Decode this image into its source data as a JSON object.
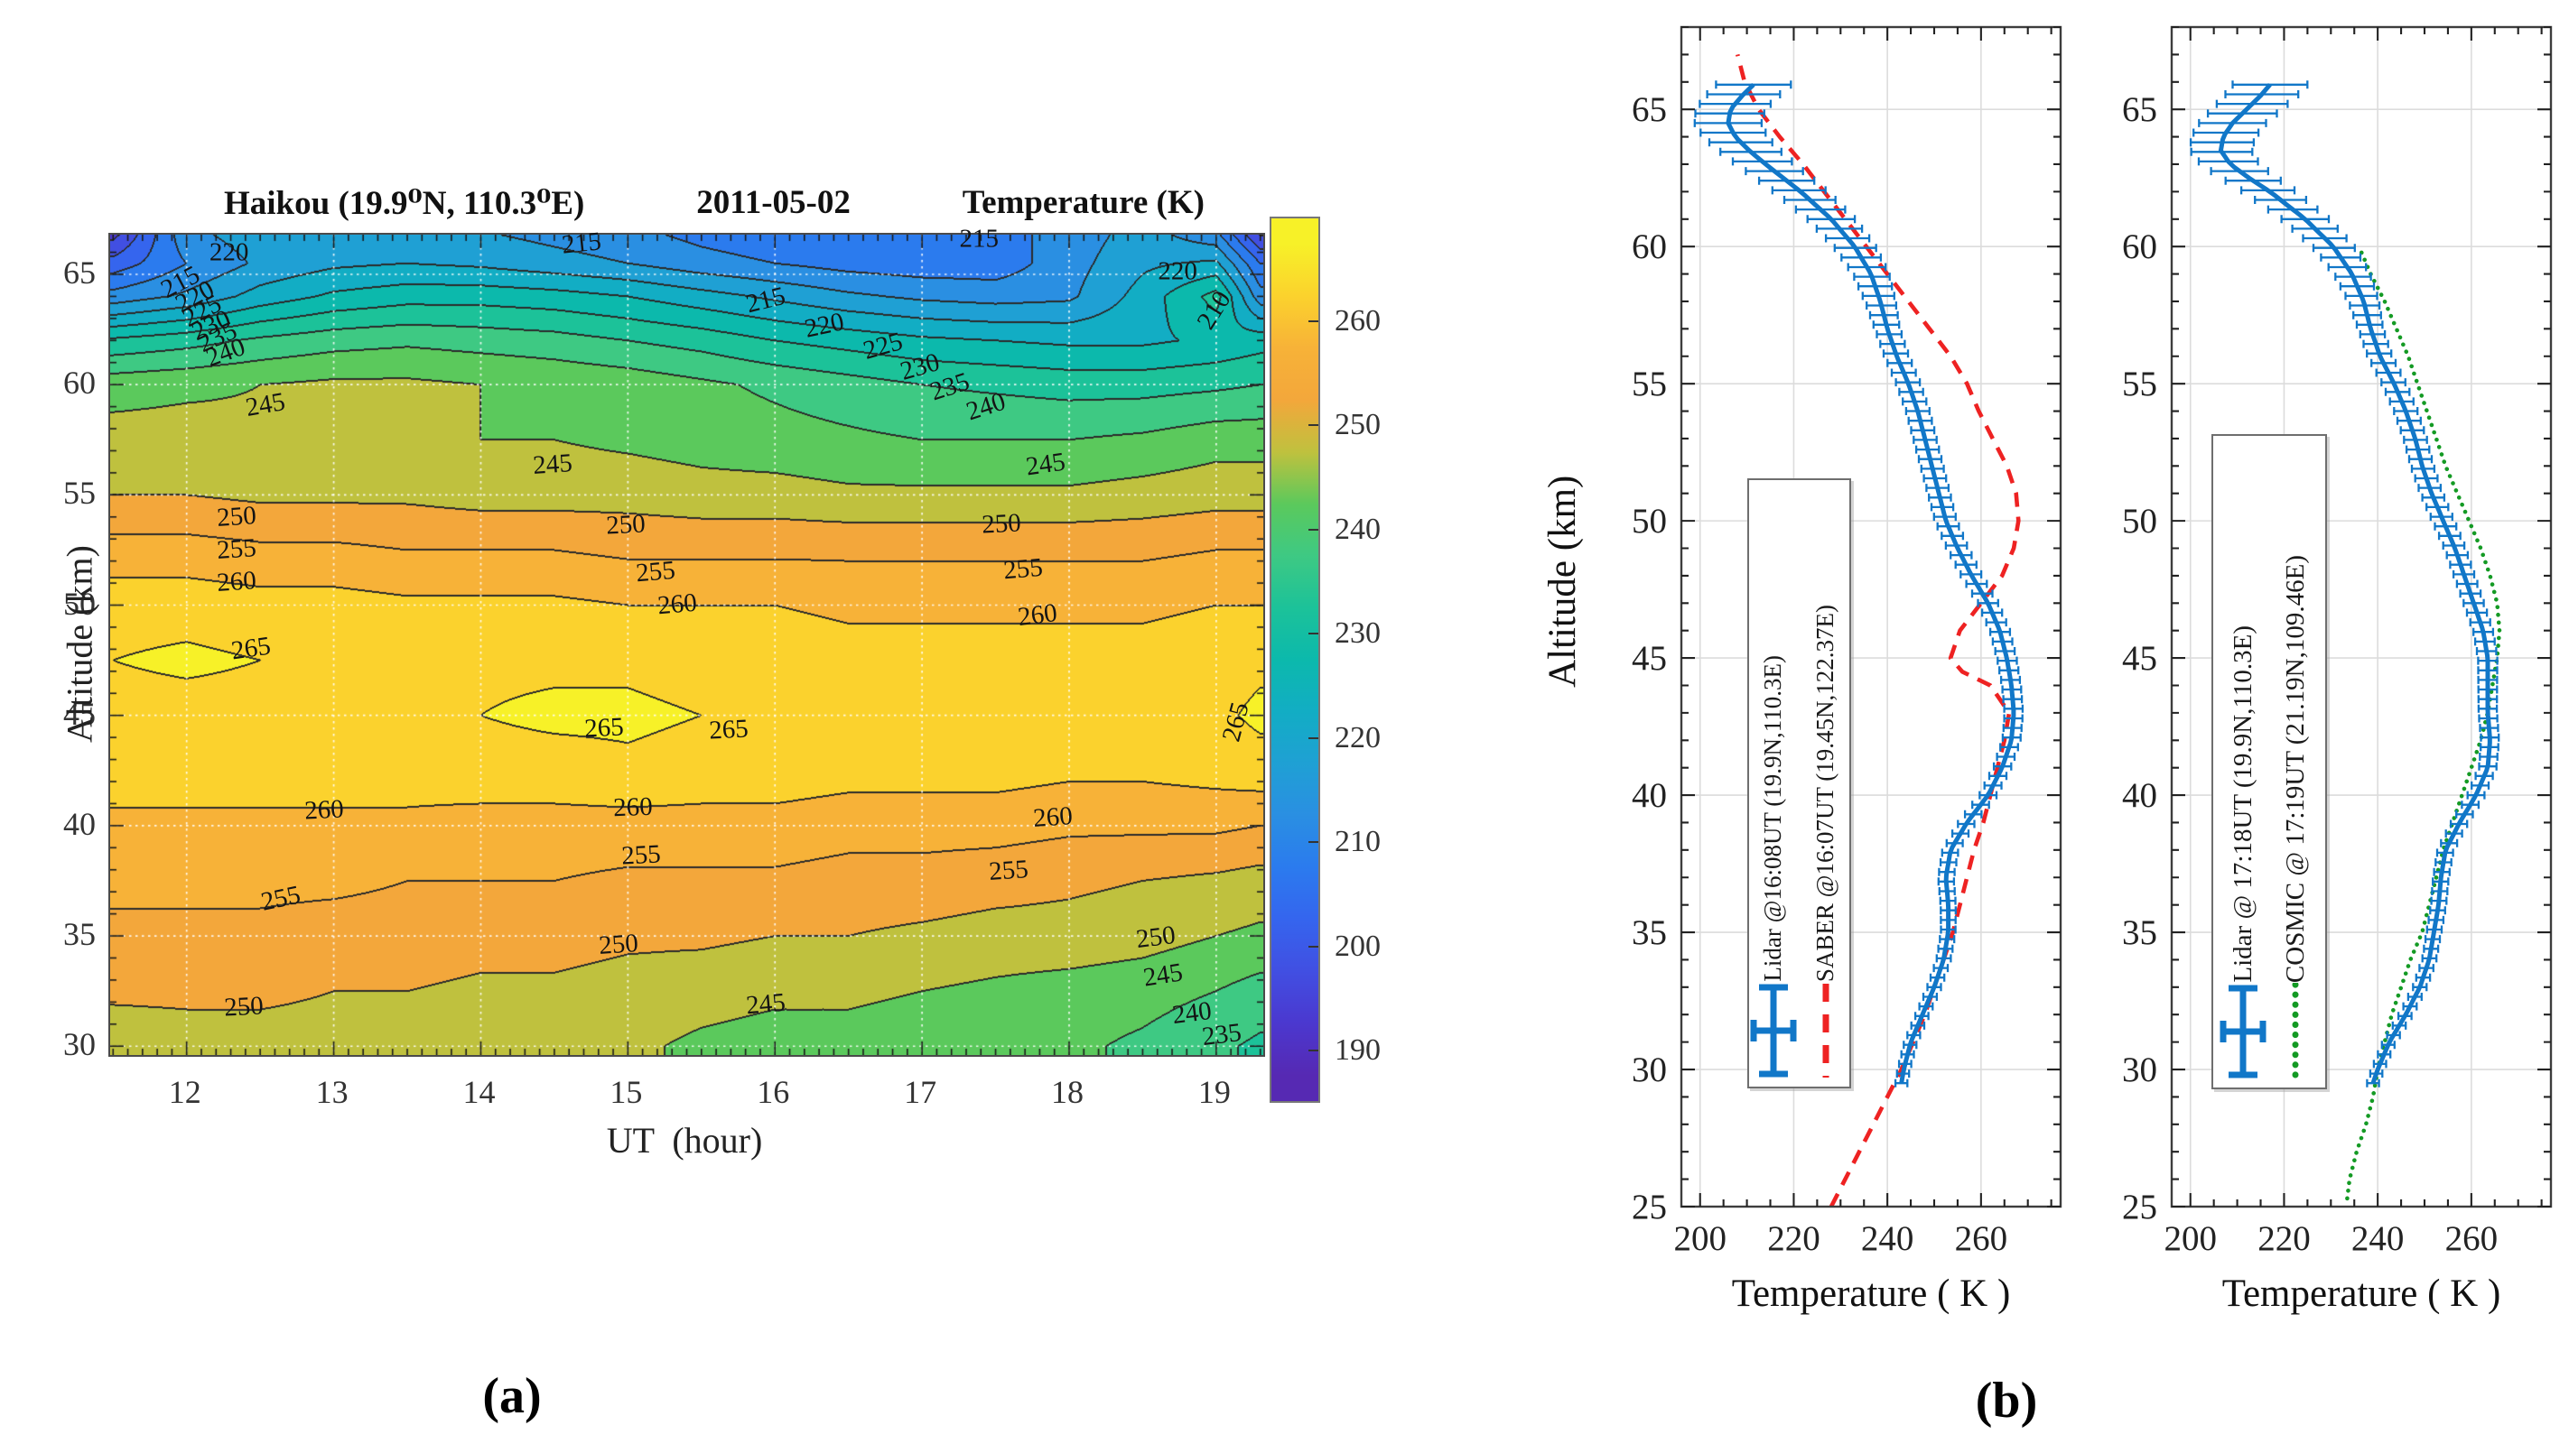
{
  "figure": {
    "background": "#ffffff",
    "panel_a_label": "(a)",
    "panel_b_label": "(b)"
  },
  "chart_data": [
    {
      "type": "contour",
      "title_location": "Haikou (19.9⁰N, 110.3⁰E)",
      "title_date": "2011-05-02",
      "title_units": "Temperature (K)",
      "xlabel": "UT  (hour)",
      "ylabel": "Altitude (km)",
      "x_ticks": [
        12,
        13,
        14,
        15,
        16,
        17,
        18,
        19
      ],
      "y_ticks": [
        30,
        35,
        40,
        45,
        50,
        55,
        60,
        65
      ],
      "x_range": [
        11.48,
        19.32
      ],
      "y_range": [
        29.6,
        66.8
      ],
      "grid_on": true,
      "level_step_K": 5,
      "grid_hours": [
        11.5,
        12,
        12.5,
        13,
        13.5,
        14,
        14.5,
        15,
        15.5,
        16,
        16.5,
        17,
        17.5,
        18,
        18.5,
        19,
        19.3
      ],
      "grid_alts_km": [
        30,
        32.5,
        35,
        37.5,
        40,
        42.5,
        45,
        47.5,
        50,
        52.5,
        55,
        57.5,
        60,
        62,
        64,
        65.5,
        67
      ],
      "grid_temps_K": [
        [
          247,
          248,
          248,
          248,
          248,
          247,
          247,
          246,
          244,
          243,
          243,
          242,
          242,
          241,
          239,
          236,
          234
        ],
        [
          251,
          251,
          251,
          250,
          250,
          249,
          249,
          248,
          247,
          246,
          246,
          245,
          244,
          243,
          242,
          240,
          238
        ],
        [
          254,
          254,
          254,
          253,
          253,
          252,
          252,
          251,
          251,
          250,
          250,
          249,
          248,
          248,
          247,
          245,
          244
        ],
        [
          256,
          256,
          256,
          256,
          255,
          255,
          255,
          254,
          254,
          254,
          253,
          253,
          252,
          251,
          250,
          249,
          248
        ],
        [
          259,
          259,
          259,
          259,
          259,
          258,
          258,
          258,
          258,
          258,
          257,
          257,
          257,
          256,
          256,
          256,
          255
        ],
        [
          262,
          262,
          262,
          262,
          262,
          263,
          263,
          264,
          263,
          263,
          262,
          262,
          262,
          261,
          261,
          262,
          263
        ],
        [
          263,
          263,
          263,
          264,
          265,
          265,
          266,
          266,
          265,
          264,
          263,
          263,
          263,
          263,
          263,
          264,
          266
        ],
        [
          265,
          266,
          265,
          264,
          264,
          264,
          264,
          264,
          263,
          263,
          262,
          262,
          262,
          262,
          262,
          263,
          264
        ],
        [
          263,
          263,
          262,
          262,
          261,
          261,
          261,
          260,
          260,
          260,
          259,
          259,
          259,
          259,
          259,
          260,
          260
        ],
        [
          257,
          257,
          256,
          256,
          255,
          255,
          255,
          254,
          254,
          254,
          254,
          254,
          254,
          254,
          254,
          255,
          255
        ],
        [
          250,
          250,
          249,
          249,
          249,
          248,
          248,
          248,
          247,
          247,
          246,
          246,
          246,
          246,
          247,
          248,
          248
        ],
        [
          247,
          247,
          246,
          246,
          246,
          245,
          245,
          244,
          243,
          242,
          241,
          240,
          240,
          240,
          241,
          243,
          243
        ],
        [
          243,
          244,
          245,
          246,
          246,
          245,
          244,
          243,
          241,
          239,
          237,
          235,
          234,
          233,
          233,
          234,
          235
        ],
        [
          231,
          233,
          236,
          238,
          239,
          238,
          237,
          235,
          233,
          230,
          228,
          226,
          225,
          224,
          224,
          226,
          228
        ],
        [
          212,
          216,
          222,
          226,
          228,
          228,
          227,
          225,
          222,
          219,
          216,
          214,
          213,
          214,
          222,
          232,
          212
        ],
        [
          202,
          210,
          216,
          219,
          220,
          219,
          217,
          215,
          212,
          210,
          208,
          207,
          207,
          213,
          219,
          221,
          205
        ],
        [
          192,
          214,
          218,
          218,
          217,
          215,
          213,
          211,
          208,
          206,
          205,
          206,
          208,
          212,
          217,
          210,
          193
        ]
      ],
      "band_min_K": 185,
      "band_colors": [
        "#5629b3",
        "#4b38cf",
        "#414fe2",
        "#3565ee",
        "#2b7bee",
        "#2a8fe2",
        "#1fa0d4",
        "#12adc4",
        "#0cb9ac",
        "#1cc299",
        "#3ec983",
        "#5bc95c",
        "#bfc13e",
        "#f3a73b",
        "#f7b238",
        "#fbd22d",
        "#f7f128"
      ],
      "contour_line_color": "#2b2b2b",
      "colorbar": {
        "min": 185,
        "max": 270,
        "ticks": [
          190,
          200,
          210,
          220,
          230,
          240,
          250,
          260
        ]
      },
      "contour_labels": [
        {
          "v": "220",
          "h": 12.3,
          "a": 65.9,
          "r": 0
        },
        {
          "v": "215",
          "h": 11.97,
          "a": 64.55,
          "r": -28
        },
        {
          "v": "220",
          "h": 12.07,
          "a": 63.9,
          "r": -28
        },
        {
          "v": "225",
          "h": 12.12,
          "a": 63.25,
          "r": -28
        },
        {
          "v": "230",
          "h": 12.18,
          "a": 62.6,
          "r": -24
        },
        {
          "v": "235",
          "h": 12.22,
          "a": 62.05,
          "r": -24
        },
        {
          "v": "240",
          "h": 12.28,
          "a": 61.35,
          "r": -20
        },
        {
          "v": "215",
          "h": 14.7,
          "a": 66.3,
          "r": -6
        },
        {
          "v": "215",
          "h": 17.4,
          "a": 66.5,
          "r": 0
        },
        {
          "v": "215",
          "h": 15.95,
          "a": 63.75,
          "r": -14
        },
        {
          "v": "220",
          "h": 16.35,
          "a": 62.6,
          "r": -12
        },
        {
          "v": "225",
          "h": 16.75,
          "a": 61.65,
          "r": -16
        },
        {
          "v": "230",
          "h": 17.0,
          "a": 60.7,
          "r": -16
        },
        {
          "v": "235",
          "h": 17.2,
          "a": 59.8,
          "r": -18
        },
        {
          "v": "240",
          "h": 17.45,
          "a": 58.9,
          "r": -18
        },
        {
          "v": "210",
          "h": 19.0,
          "a": 63.3,
          "r": -58
        },
        {
          "v": "220",
          "h": 18.75,
          "a": 65.05,
          "r": 0
        },
        {
          "v": "245",
          "h": 12.55,
          "a": 59.0,
          "r": -10
        },
        {
          "v": "245",
          "h": 14.5,
          "a": 56.3,
          "r": -4
        },
        {
          "v": "245",
          "h": 17.85,
          "a": 56.3,
          "r": -8
        },
        {
          "v": "250",
          "h": 12.35,
          "a": 53.9,
          "r": -4
        },
        {
          "v": "255",
          "h": 12.35,
          "a": 52.45,
          "r": -4
        },
        {
          "v": "260",
          "h": 12.35,
          "a": 50.95,
          "r": -4
        },
        {
          "v": "265",
          "h": 12.45,
          "a": 47.95,
          "r": -8
        },
        {
          "v": "250",
          "h": 15.0,
          "a": 53.55,
          "r": -3
        },
        {
          "v": "255",
          "h": 15.2,
          "a": 51.4,
          "r": -5
        },
        {
          "v": "260",
          "h": 15.35,
          "a": 49.95,
          "r": -5
        },
        {
          "v": "250",
          "h": 17.55,
          "a": 53.6,
          "r": -3
        },
        {
          "v": "255",
          "h": 17.7,
          "a": 51.55,
          "r": -5
        },
        {
          "v": "260",
          "h": 17.8,
          "a": 49.45,
          "r": -7
        },
        {
          "v": "265",
          "h": 14.85,
          "a": 44.35,
          "r": -3
        },
        {
          "v": "265",
          "h": 15.7,
          "a": 44.25,
          "r": -3
        },
        {
          "v": "265",
          "h": 19.15,
          "a": 44.6,
          "r": -75
        },
        {
          "v": "260",
          "h": 12.95,
          "a": 40.6,
          "r": -3
        },
        {
          "v": "260",
          "h": 15.05,
          "a": 40.75,
          "r": -2
        },
        {
          "v": "260",
          "h": 17.9,
          "a": 40.3,
          "r": -4
        },
        {
          "v": "255",
          "h": 12.65,
          "a": 36.6,
          "r": -12
        },
        {
          "v": "255",
          "h": 15.1,
          "a": 38.55,
          "r": -3
        },
        {
          "v": "255",
          "h": 17.6,
          "a": 37.85,
          "r": -4
        },
        {
          "v": "250",
          "h": 12.4,
          "a": 31.7,
          "r": -3
        },
        {
          "v": "250",
          "h": 14.95,
          "a": 34.5,
          "r": -4
        },
        {
          "v": "250",
          "h": 18.6,
          "a": 34.85,
          "r": -7
        },
        {
          "v": "245",
          "h": 15.95,
          "a": 31.8,
          "r": -5
        },
        {
          "v": "245",
          "h": 18.65,
          "a": 33.1,
          "r": -9
        },
        {
          "v": "240",
          "h": 18.85,
          "a": 31.4,
          "r": -7
        },
        {
          "v": "235",
          "h": 19.05,
          "a": 30.4,
          "r": -7
        }
      ]
    },
    {
      "type": "line",
      "xlabel": "Temperature  ( K )",
      "ylabel": "Altitude (km)",
      "x_ticks": [
        200,
        220,
        240,
        260
      ],
      "y_ticks": [
        25,
        30,
        35,
        40,
        45,
        50,
        55,
        60,
        65
      ],
      "x_range": [
        196,
        277
      ],
      "y_range": [
        25,
        68
      ],
      "grid_on": true,
      "legend_position": "lower-left-vertical",
      "series": [
        {
          "name": "Lidar @16:08UT (19.9N,110.3E)",
          "style": "errorbar",
          "color": "#1177c8",
          "errorbar_halfwidth_K": {
            "base": 1.3,
            "per_km": 0.05,
            "steep_above_km": 57,
            "steep_per_km": 0.55,
            "cap": 9.0
          },
          "alt_km": [
            29.5,
            30,
            31,
            32,
            33,
            34,
            35,
            36,
            37,
            38,
            39,
            40,
            41,
            42,
            43,
            44,
            45,
            46,
            47,
            48,
            49,
            50,
            51,
            52,
            53,
            54,
            55,
            56,
            57,
            58,
            59,
            60,
            61,
            62,
            63,
            63.5,
            64,
            64.5,
            65,
            65.5,
            66
          ],
          "temp_K": [
            243,
            243.5,
            245,
            247.5,
            250,
            252,
            253,
            253,
            252.5,
            253.5,
            257,
            261.5,
            264.5,
            266.5,
            267,
            266.5,
            265.5,
            264,
            261.5,
            258,
            255,
            252.5,
            251,
            249.5,
            248,
            246.5,
            244.5,
            242,
            240,
            238.5,
            236.5,
            233,
            228,
            221.5,
            214,
            210.5,
            207.5,
            206,
            206.5,
            209,
            212
          ]
        },
        {
          "name": "SABER @16:07UT (19.45N,122.37E)",
          "style": "dashed",
          "color": "#ee2222",
          "alt_km": [
            25,
            26,
            27,
            28,
            29,
            30,
            31,
            32,
            33,
            34,
            35,
            36,
            37,
            38,
            39,
            40,
            41,
            42,
            43,
            44,
            44.5,
            45,
            46,
            47,
            48,
            49,
            50,
            51,
            52,
            53,
            54,
            55,
            56,
            57,
            58,
            59,
            60,
            61,
            62,
            63,
            64,
            65,
            66,
            67
          ],
          "temp_K": [
            228,
            231,
            234,
            237,
            240,
            243,
            245.5,
            248,
            250,
            252,
            254,
            255.5,
            257,
            258.5,
            260.5,
            262,
            263.5,
            265,
            266,
            262,
            256,
            253.5,
            255.5,
            260,
            264.5,
            267,
            268,
            267.5,
            265.5,
            262.5,
            259.5,
            257,
            253.5,
            249,
            244.5,
            240,
            235.5,
            231,
            226.5,
            222,
            217,
            212.5,
            209.5,
            208
          ]
        }
      ]
    },
    {
      "type": "line",
      "xlabel": "Temperature  ( K )",
      "ylabel": "",
      "x_ticks": [
        200,
        220,
        240,
        260
      ],
      "y_ticks": [
        25,
        30,
        35,
        40,
        45,
        50,
        55,
        60,
        65
      ],
      "x_range": [
        196,
        277
      ],
      "y_range": [
        25,
        68
      ],
      "grid_on": true,
      "legend_position": "lower-left-vertical",
      "series": [
        {
          "name": "Lidar @ 17:18UT (19.9N,110.3E)",
          "style": "errorbar",
          "color": "#1177c8",
          "errorbar_halfwidth_K": {
            "base": 1.3,
            "per_km": 0.05,
            "steep_above_km": 57,
            "steep_per_km": 0.55,
            "cap": 9.0
          },
          "alt_km": [
            29.5,
            30,
            31,
            32,
            33,
            34,
            35,
            36,
            37,
            38,
            39,
            40,
            41,
            42,
            43,
            44,
            45,
            46,
            47,
            48,
            49,
            50,
            51,
            52,
            53,
            54,
            55,
            56,
            57,
            58,
            59,
            60,
            61,
            62,
            62.5,
            63,
            63.5,
            64,
            64.5,
            65,
            65.5,
            66
          ],
          "temp_K": [
            239,
            240,
            242.5,
            246,
            249,
            251,
            252,
            253,
            253.5,
            254.5,
            257.5,
            261,
            263.5,
            264,
            263.5,
            263.5,
            263.5,
            262.5,
            260.5,
            258.5,
            256.5,
            254,
            251.5,
            249.5,
            248,
            246,
            243.5,
            240.5,
            238.5,
            237,
            234.5,
            230.5,
            224.5,
            217,
            212.5,
            208.5,
            206.5,
            207,
            209,
            212,
            215,
            217.5
          ]
        },
        {
          "name": "COSMIC @ 17:19UT (21.19N,109.46E)",
          "style": "dotted",
          "color": "#149a24",
          "alt_km": [
            25.3,
            26,
            27,
            28,
            29,
            30,
            31,
            32,
            33,
            34,
            35,
            36,
            37,
            38,
            39,
            40,
            41,
            42,
            43,
            44,
            45,
            46,
            47,
            48,
            49,
            50,
            51,
            52,
            53,
            54,
            55,
            56,
            57,
            58,
            59,
            60
          ],
          "temp_K": [
            233.5,
            234,
            235.5,
            237.5,
            239,
            240,
            241.5,
            243,
            245,
            247,
            249.5,
            251,
            252.5,
            254,
            256,
            258,
            260,
            262,
            263.5,
            264.5,
            265.5,
            266,
            265.5,
            264,
            262,
            259.5,
            257,
            254.5,
            252.5,
            250.5,
            248.5,
            246.5,
            244,
            241.5,
            238.5,
            236
          ]
        }
      ]
    }
  ]
}
